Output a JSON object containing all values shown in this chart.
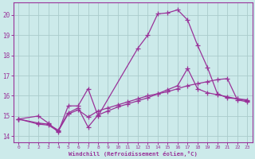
{
  "xlabel": "Windchill (Refroidissement éolien,°C)",
  "bg_color": "#cceaea",
  "line_color": "#993399",
  "grid_color": "#aacccc",
  "xlim": [
    -0.5,
    23.5
  ],
  "ylim": [
    13.7,
    20.6
  ],
  "xticks": [
    0,
    1,
    2,
    3,
    4,
    5,
    6,
    7,
    8,
    9,
    10,
    11,
    12,
    13,
    14,
    15,
    16,
    17,
    18,
    19,
    20,
    21,
    22,
    23
  ],
  "yticks": [
    14,
    15,
    16,
    17,
    18,
    19,
    20
  ],
  "curve1_x": [
    0,
    2,
    3,
    4,
    5,
    6,
    7,
    8,
    12,
    13,
    14,
    15,
    16,
    17,
    18,
    19,
    20,
    21,
    22,
    23
  ],
  "curve1_y": [
    14.85,
    15.0,
    14.65,
    14.2,
    15.5,
    15.5,
    16.35,
    15.0,
    18.35,
    19.0,
    20.05,
    20.1,
    20.25,
    19.75,
    18.5,
    17.4,
    16.1,
    15.9,
    15.85,
    15.8
  ],
  "curve2_x": [
    0,
    2,
    3,
    4,
    5,
    6,
    7,
    8,
    9,
    10,
    11,
    12,
    13,
    14,
    15,
    16,
    17,
    18,
    19,
    20,
    21,
    22,
    23
  ],
  "curve2_y": [
    14.85,
    14.65,
    14.6,
    14.3,
    15.15,
    15.4,
    14.45,
    15.05,
    15.25,
    15.45,
    15.6,
    15.75,
    15.9,
    16.1,
    16.3,
    16.5,
    17.35,
    16.35,
    16.15,
    16.05,
    15.95,
    15.85,
    15.75
  ],
  "curve3_x": [
    0,
    2,
    3,
    4,
    5,
    6,
    7,
    8,
    9,
    10,
    11,
    12,
    13,
    14,
    15,
    16,
    17,
    18,
    19,
    20,
    21,
    22,
    23
  ],
  "curve3_y": [
    14.85,
    14.6,
    14.55,
    14.25,
    15.1,
    15.3,
    14.95,
    15.25,
    15.4,
    15.55,
    15.7,
    15.85,
    16.0,
    16.1,
    16.2,
    16.35,
    16.5,
    16.6,
    16.7,
    16.8,
    16.85,
    15.8,
    15.7
  ]
}
